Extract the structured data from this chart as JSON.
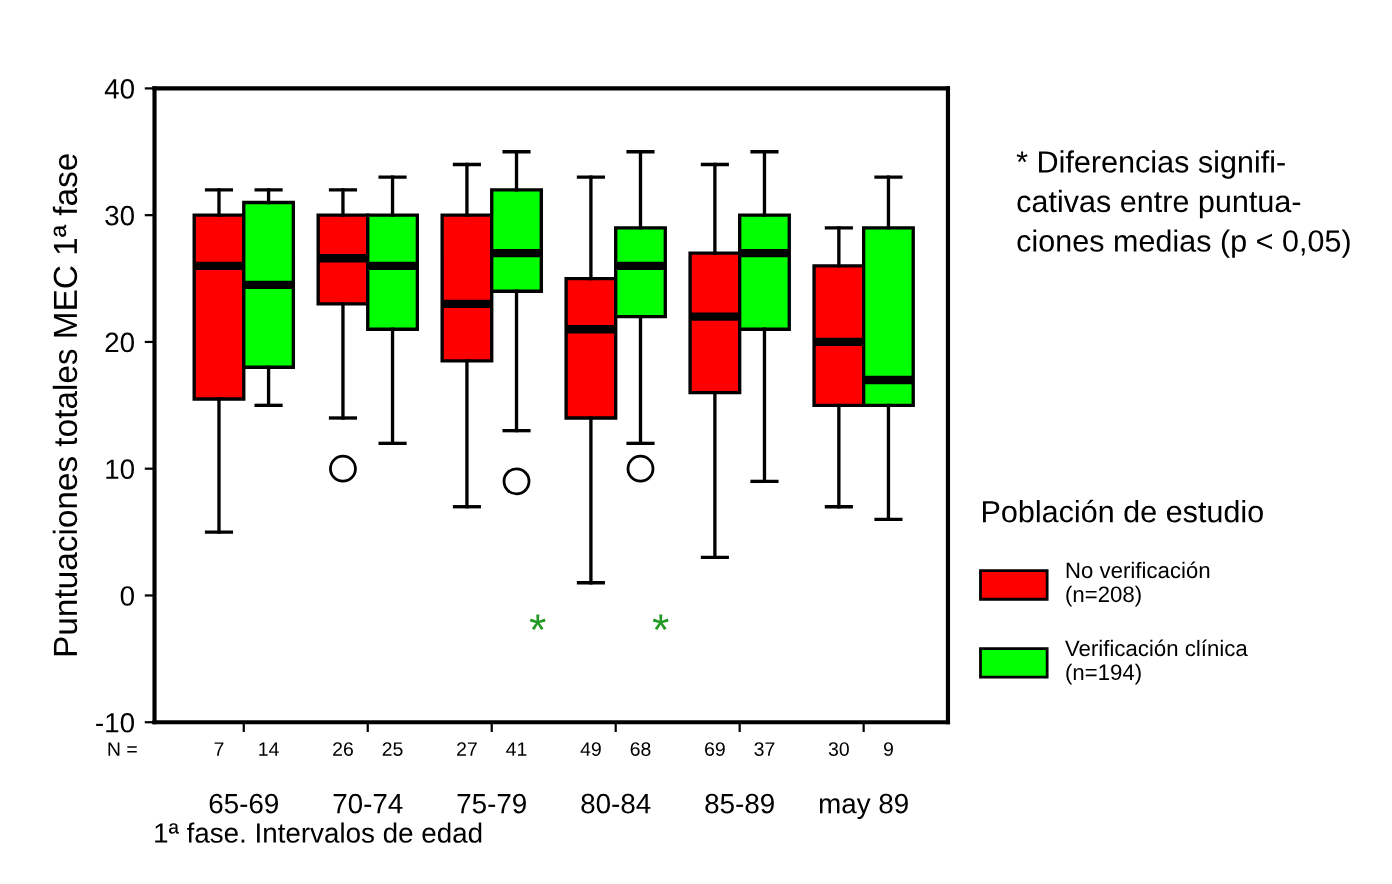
{
  "chart_data": {
    "type": "box",
    "ylabel": "Puntuaciones totales MEC 1ª fase",
    "xlabel": "1ª fase. Intervalos de edad",
    "legend_title": "Población de estudio",
    "legend": "right",
    "grid": false,
    "categories": [
      "65-69",
      "70-74",
      "75-79",
      "80-84",
      "85-89",
      "may 89"
    ],
    "ylim": [
      -10,
      40
    ],
    "yticks": [
      -10,
      0,
      10,
      20,
      30,
      40
    ],
    "series": [
      {
        "name": "No verificación\n(n=208)",
        "color": "#ff0000",
        "boxes": [
          {
            "low": 5,
            "q1": 15.5,
            "median": 26,
            "q3": 30,
            "high": 32
          },
          {
            "low": 14,
            "q1": 23,
            "median": 26.6,
            "q3": 30,
            "high": 32,
            "outliers": [
              10
            ]
          },
          {
            "low": 7,
            "q1": 18.5,
            "median": 23,
            "q3": 30,
            "high": 34
          },
          {
            "low": 1,
            "q1": 14,
            "median": 21,
            "q3": 25,
            "high": 33
          },
          {
            "low": 3,
            "q1": 16,
            "median": 22,
            "q3": 27,
            "high": 34
          },
          {
            "low": 7,
            "q1": 15,
            "median": 20,
            "q3": 26,
            "high": 29
          }
        ]
      },
      {
        "name": "Verificación clínica\n(n=194)",
        "color": "#00ff00",
        "boxes": [
          {
            "low": 15,
            "q1": 18,
            "median": 24.5,
            "q3": 31,
            "high": 32
          },
          {
            "low": 12,
            "q1": 21,
            "median": 26,
            "q3": 30,
            "high": 33
          },
          {
            "low": 13,
            "q1": 24,
            "median": 27,
            "q3": 32,
            "high": 35,
            "outliers": [
              9
            ]
          },
          {
            "low": 12,
            "q1": 22,
            "median": 26,
            "q3": 29,
            "high": 35,
            "outliers": [
              10
            ]
          },
          {
            "low": 9,
            "q1": 21,
            "median": 27,
            "q3": 30,
            "high": 35
          },
          {
            "low": 6,
            "q1": 15,
            "median": 17,
            "q3": 29,
            "high": 33
          }
        ]
      }
    ],
    "annotations": [
      "N =",
      "7",
      "14",
      "26",
      "25",
      "27",
      "41",
      "49",
      "68",
      "69",
      "37",
      "30",
      "9",
      "*",
      "*",
      "* Diferencias signifi-\ncativas entre puntua-\nciones medias (p < 0,05)"
    ]
  }
}
